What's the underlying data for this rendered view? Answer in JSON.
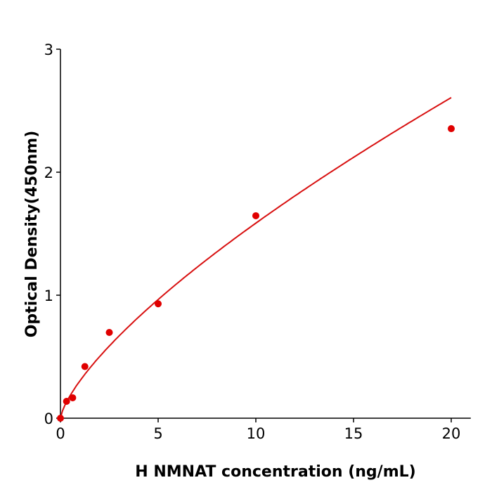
{
  "chart_data": {
    "type": "scatter",
    "title": "",
    "xlabel": "H  NMNAT concentration (ng/mL)",
    "ylabel": "Optical Density(450nm)",
    "xlim": [
      0,
      21
    ],
    "ylim": [
      0,
      3
    ],
    "xticks": [
      0,
      5,
      10,
      15,
      20
    ],
    "yticks": [
      0,
      1,
      2,
      3
    ],
    "grid": false,
    "x": [
      0,
      0.3125,
      0.625,
      1.25,
      2.5,
      5,
      10,
      20
    ],
    "y": [
      0,
      0.137,
      0.166,
      0.42,
      0.697,
      0.93,
      1.646,
      2.354
    ],
    "fit": "curve",
    "colors": {
      "points": "#e00000",
      "curve": "#d81010",
      "axis": "#000000"
    }
  }
}
